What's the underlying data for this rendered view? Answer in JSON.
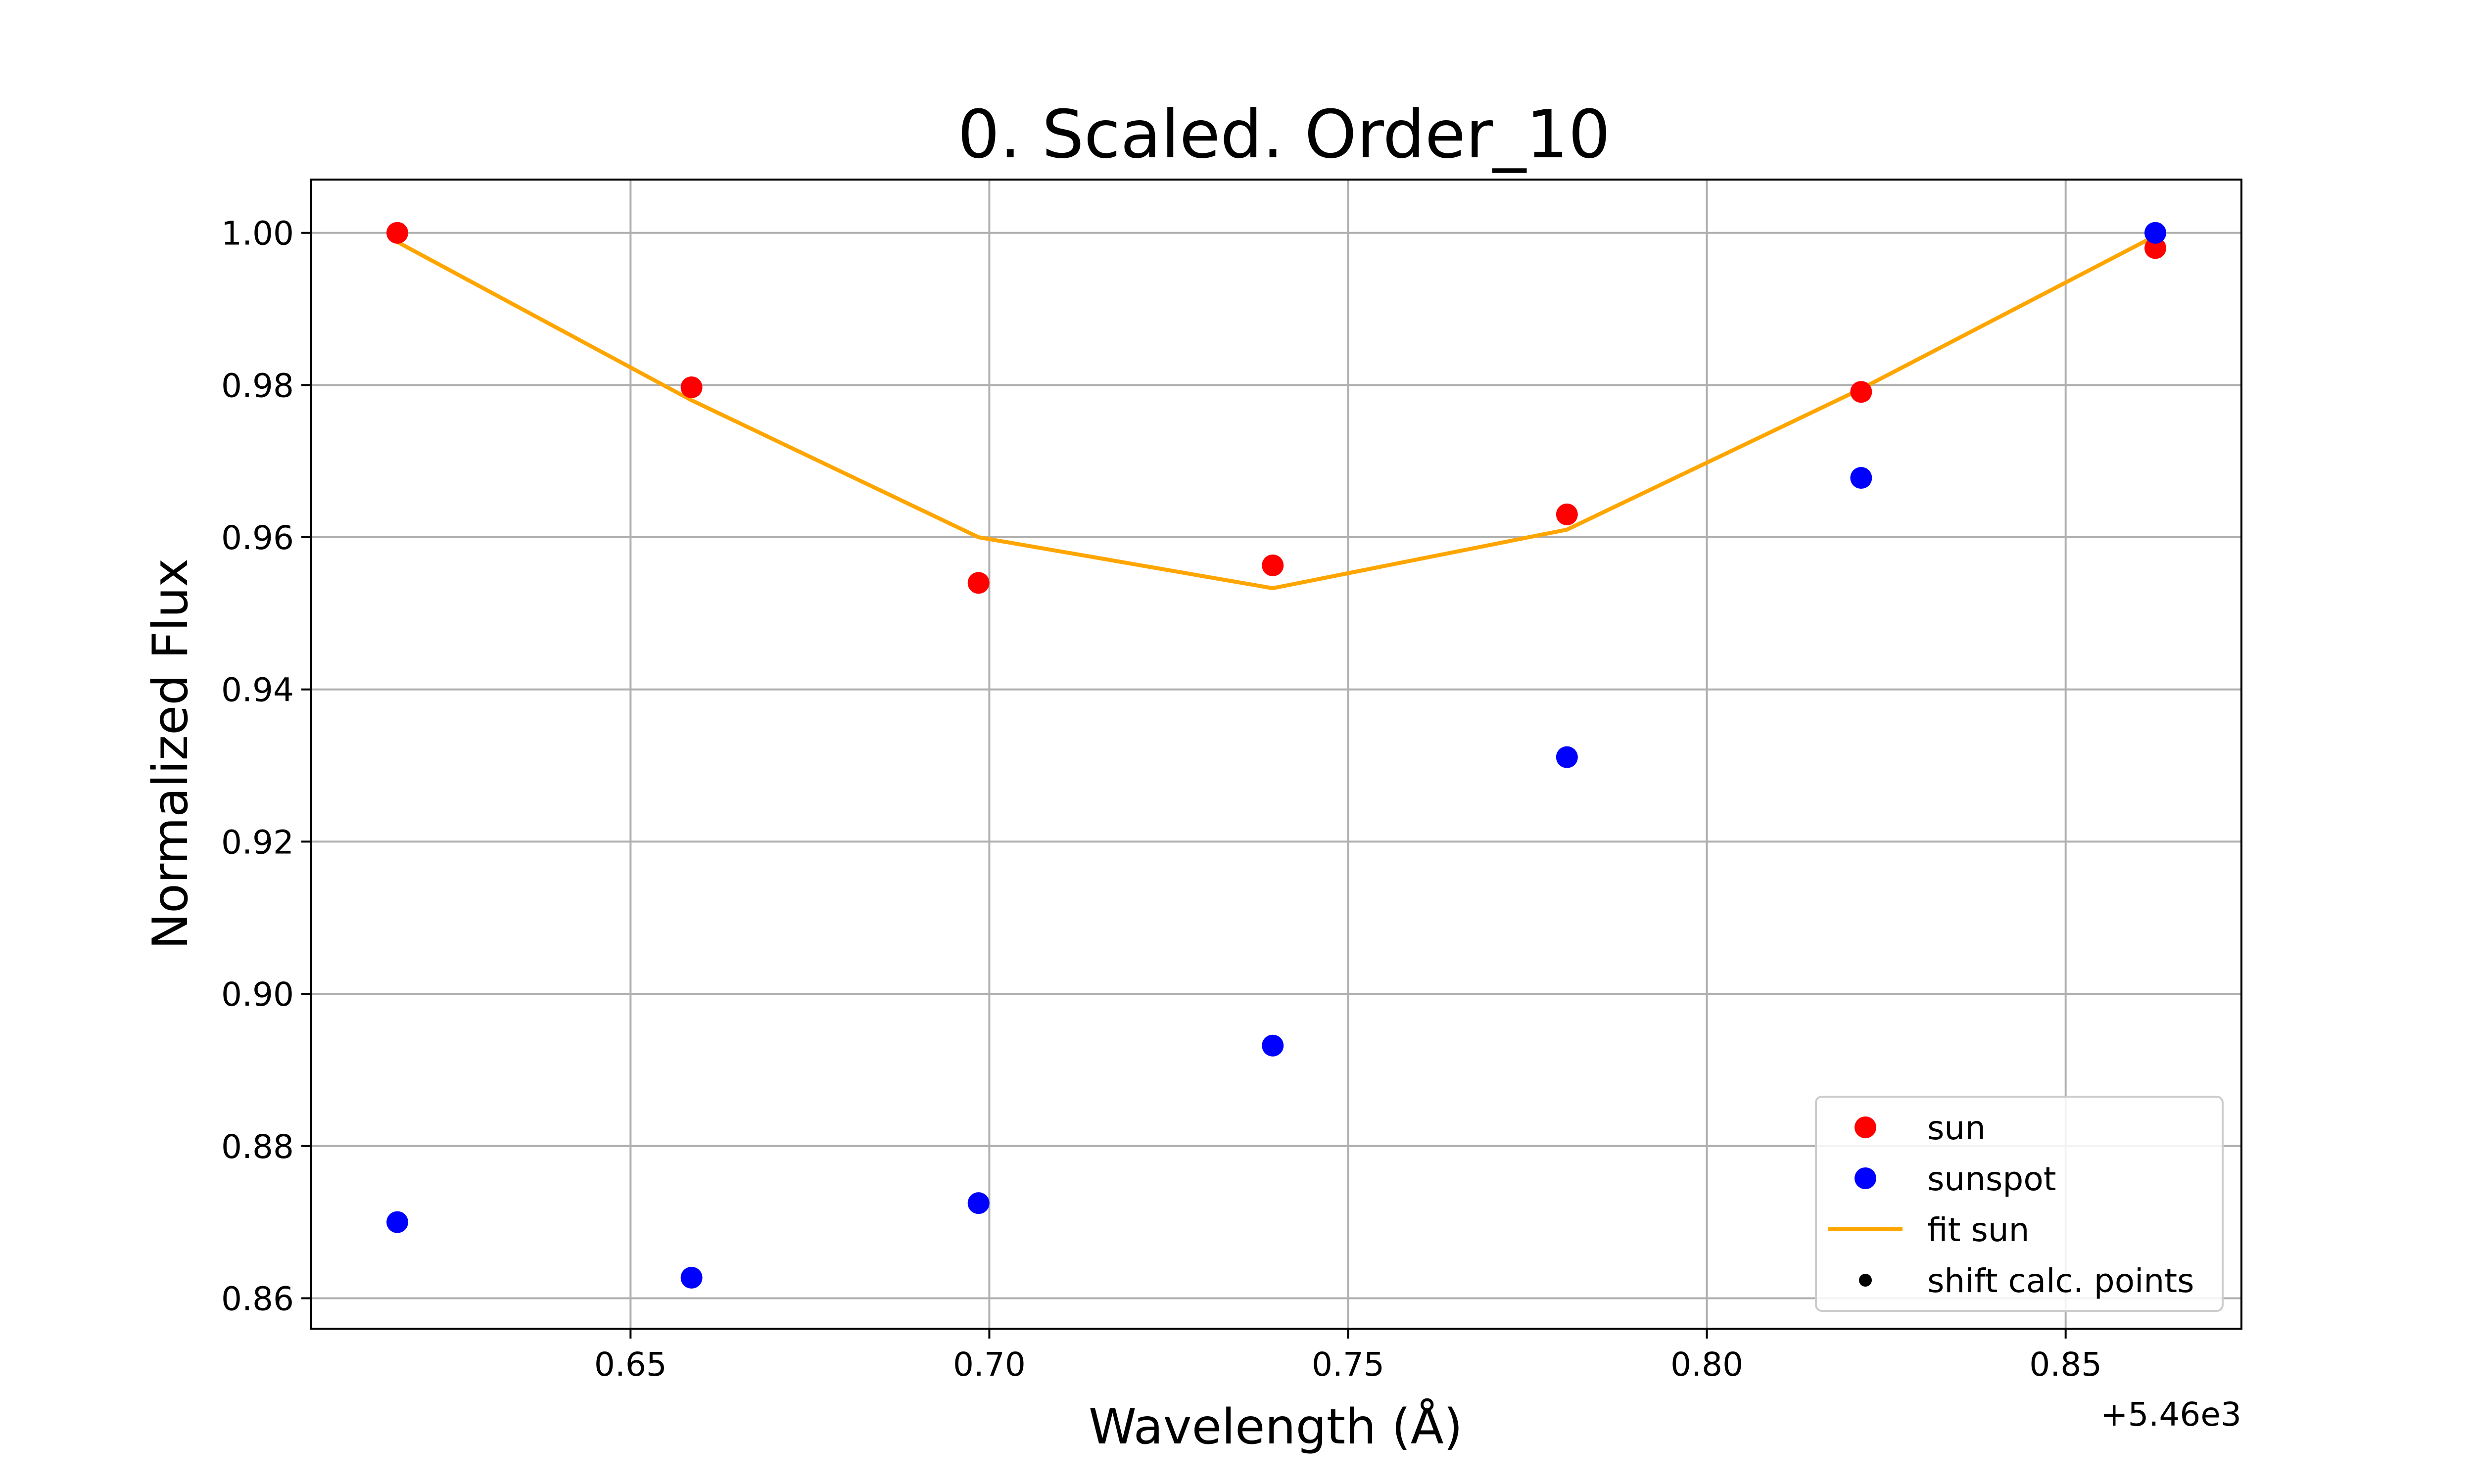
{
  "chart_data": {
    "type": "scatter",
    "title": "0. Scaled. Order_10",
    "xlabel": "Wavelength (Å)",
    "ylabel": "Normalized Flux",
    "x_offset_label": "+5.46e3",
    "xlim": [
      5460.6055,
      5460.8745
    ],
    "ylim": [
      0.856,
      1.007
    ],
    "xticks": [
      5460.65,
      5460.7,
      5460.75,
      5460.8,
      5460.85
    ],
    "xtick_labels": [
      "0.65",
      "0.70",
      "0.75",
      "0.80",
      "0.85"
    ],
    "yticks": [
      0.86,
      0.88,
      0.9,
      0.92,
      0.94,
      0.96,
      0.98,
      1.0
    ],
    "ytick_labels": [
      "0.86",
      "0.88",
      "0.90",
      "0.92",
      "0.94",
      "0.96",
      "0.98",
      "1.00"
    ],
    "grid": true,
    "legend_position": "lower-right",
    "series": [
      {
        "name": "sun",
        "kind": "scatter",
        "color": "#ff0000",
        "x": [
          5460.6175,
          5460.6585,
          5460.6985,
          5460.7395,
          5460.7805,
          5460.8215,
          5460.8625
        ],
        "y": [
          1.0,
          0.9797,
          0.954,
          0.9563,
          0.963,
          0.9791,
          0.998
        ]
      },
      {
        "name": "sunspot",
        "kind": "scatter",
        "color": "#0000ff",
        "x": [
          5460.6175,
          5460.6585,
          5460.6985,
          5460.7395,
          5460.7805,
          5460.8215,
          5460.8625
        ],
        "y": [
          0.87,
          0.8627,
          0.8725,
          0.8932,
          0.9311,
          0.9678,
          1.0
        ]
      },
      {
        "name": "fit sun",
        "kind": "line",
        "color": "#ffa500",
        "x": [
          5460.6175,
          5460.6585,
          5460.6985,
          5460.7395,
          5460.7805,
          5460.8215,
          5460.8625
        ],
        "y": [
          0.9988,
          0.978,
          0.96,
          0.9533,
          0.961,
          0.9795,
          0.9996
        ]
      },
      {
        "name": "shift calc. points",
        "kind": "scatter",
        "color": "#000000",
        "x": [],
        "y": []
      }
    ]
  }
}
